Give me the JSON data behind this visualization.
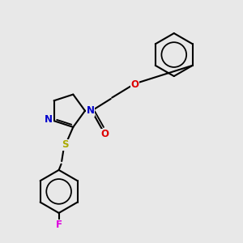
{
  "background_color": "#e8e8e8",
  "bond_color": "#000000",
  "n_color": "#0000cc",
  "o_color": "#dd0000",
  "s_color": "#aaaa00",
  "f_color": "#dd00dd",
  "line_width": 1.5,
  "figsize": [
    3.0,
    3.0
  ],
  "dpi": 100,
  "xlim": [
    0,
    10
  ],
  "ylim": [
    0,
    10
  ]
}
